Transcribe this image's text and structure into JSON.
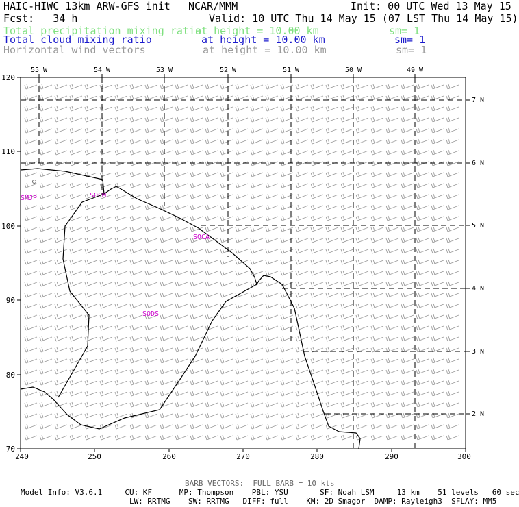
{
  "header": {
    "model_title": "HAIC-HIWC 13km ARW-GFS init",
    "org": "NCAR/MMM",
    "init": "Init: 00 UTC Wed 13 May 15",
    "fcst": "Fcst:   34 h",
    "valid": "Valid: 10 UTC Thu 14 May 15 (07 LST Thu 14 May 15)"
  },
  "fields": [
    {
      "name": "Total precipitation mixing ratio",
      "height": "at height = 10.00 km",
      "sm": "sm= 1",
      "color": "#7fe07f"
    },
    {
      "name": "Total cloud mixing ratio",
      "height": "at height = 10.00 km",
      "sm": "sm= 1",
      "color": "#1a1acc"
    },
    {
      "name": "Horizontal wind vectors",
      "height": "at height = 10.00 km",
      "sm": "sm= 1",
      "color": "#9a9a9a"
    }
  ],
  "map": {
    "x_ticks": [
      "240",
      "250",
      "260",
      "270",
      "280",
      "290",
      "300"
    ],
    "y_ticks": [
      "70",
      "80",
      "90",
      "100",
      "110",
      "120"
    ],
    "lon_labels": [
      "55 W",
      "54 W",
      "53 W",
      "52 W",
      "51 W",
      "50 W",
      "49 W"
    ],
    "lat_labels": [
      "7 N",
      "6 N",
      "5 N",
      "4 N",
      "3 N",
      "2 N"
    ],
    "stations": [
      "SMJP",
      "SOCM",
      "SOCA",
      "SODS"
    ],
    "coast_color": "#000000",
    "station_color": "#cc00cc",
    "barb_color": "#9a9a9a"
  },
  "footer": {
    "barb_note": "BARB VECTORS:  FULL BARB = 10 kts",
    "line1": "Model Info: V3.6.1     CU: KF      MP: Thompson    PBL: YSU       SF: Noah LSM     13 km    51 levels   60 sec",
    "line2": "                        LW: RRTMG    SW: RRTMG   DIFF: full    KM: 2D Smagor  DAMP: Rayleigh3  SFLAY: MM5"
  }
}
